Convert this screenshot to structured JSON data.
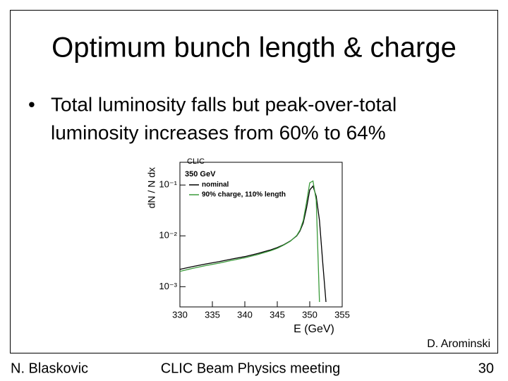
{
  "slide": {
    "title": "Optimum bunch length & charge",
    "bullet": [
      "Total luminosity falls but peak-over-total",
      "luminosity increases from 60% to 64%"
    ],
    "credit": "D. Arominski"
  },
  "footer": {
    "left": "N. Blaskovic",
    "center": "CLIC Beam Physics meeting",
    "right": "30"
  },
  "chart_data": {
    "type": "line",
    "title": "CLIC",
    "subtitle": "350 GeV",
    "xlabel": "E (GeV)",
    "ylabel": "dN / N dx",
    "x": [
      330,
      332,
      334,
      336,
      338,
      340,
      342,
      344,
      345,
      346,
      347,
      348,
      348.5,
      349,
      349.5,
      350,
      350.5,
      351,
      351.5,
      352,
      352.5
    ],
    "series": [
      {
        "name": "nominal",
        "color": "#000000",
        "values": [
          0.0022,
          0.0025,
          0.0028,
          0.0031,
          0.0035,
          0.0039,
          0.0045,
          0.0053,
          0.0059,
          0.0067,
          0.0079,
          0.01,
          0.0125,
          0.018,
          0.035,
          0.08,
          0.095,
          0.06,
          0.02,
          0.003,
          0.0005
        ]
      },
      {
        "name": "90% charge, 110% length",
        "color": "#3a9a3a",
        "values": [
          0.002,
          0.0023,
          0.0026,
          0.0029,
          0.0033,
          0.0037,
          0.0043,
          0.0051,
          0.0057,
          0.0066,
          0.0078,
          0.0102,
          0.013,
          0.02,
          0.045,
          0.11,
          0.12,
          0.05,
          0.0005,
          null,
          null
        ]
      }
    ],
    "xlim": [
      330,
      355
    ],
    "xticks": [
      330,
      335,
      340,
      345,
      350,
      355
    ],
    "ylim": [
      0.0004,
      0.28
    ],
    "log_y": true,
    "yticks": [
      {
        "value": 0.001,
        "label": "10⁻³"
      },
      {
        "value": 0.01,
        "label": "10⁻²"
      },
      {
        "value": 0.1,
        "label": "10⁻¹"
      }
    ]
  }
}
